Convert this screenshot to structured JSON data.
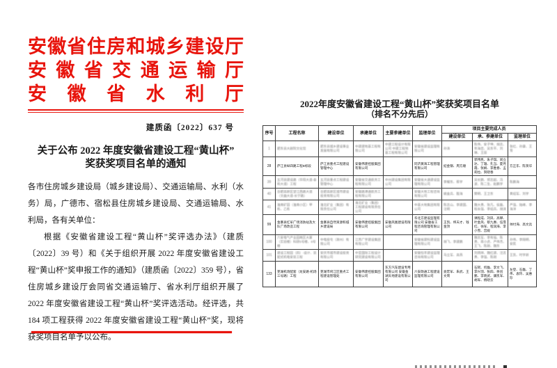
{
  "colors": {
    "red": "#e8140c",
    "text": "#1a1a1a"
  },
  "left_doc": {
    "agency_lines": [
      "安徽省住房和城乡建设厅",
      "安徽省交通运输厅",
      "安徽省水利厅"
    ],
    "doc_number": "建质函〔2022〕637 号",
    "title_line1": "关于公布 2022 年度安徽省建设工程“黄山杯”",
    "title_line2": "奖获奖项目名单的通知",
    "paragraphs": [
      "各市住房城乡建设局（城乡建设局）、交通运输局、水利（水务）局，广德市、宿松县住房城乡建设局、交通运输局、水利局，各有关单位：",
      "根据《安徽省建设工程“黄山杯”奖评选办法》（建质〔2022〕39 号）和《关于组织开展 2022 年度安徽省建设工程“黄山杯”奖申报工作的通知》（建质函〔2022〕359 号），省住房城乡建设厅会同省交通运输厅、省水利厅组织开展了 2022 年度安徽省建设工程“黄山杯”奖评选活动。经评选，共 184 项工程获得 2022 年度安徽省建设工程“黄山杯”奖，现将获奖项目名单予以公布。"
    ]
  },
  "right_doc": {
    "title": "2022年度安徽省建设工程“黄山杯”奖获奖项目名单",
    "subtitle": "（排名不分先后）",
    "table": {
      "headers": [
        "序号",
        "工程名称",
        "建设单位",
        "承建单位",
        "主要参建单位",
        "监理单位",
        "项目主要完成人员",
        "建设单位",
        "承、参建单位",
        "监理单位"
      ],
      "rows": [
        {
          "num": "1",
          "blur": true,
          "cells": [
            "肥东县大剧院文化馆",
            "肥东县城乡建设事业发展有限公司",
            "中建建地基工程有限公司",
            "中建工程设计有限公司 中建工程地基工程有限公司",
            "安徽省建设监理有限公司",
            "孙涛",
            "陈伟、安子坤、胡志、年海忠、吴东平、刘琳、王丽",
            "张红、孙康、王雪"
          ]
        },
        {
          "num": "28",
          "blur": false,
          "cells": [
            "庐江县纵四路工程B标段",
            "庐江县重点工程建设管理中心",
            "安徽伟建控股集团有限公司",
            "",
            "同济黄海工程管理有限公司",
            "纪金钢、周方顺",
            "郭伟民、朱子琪、闵立达、丁雄、孔当、夏月霞、张娟、李胜春、孟莉拉、贺晓春",
            "方正东、陈贺华"
          ]
        },
        {
          "num": "39",
          "blur": true,
          "cells": [
            "五河县建设路（华阳大道-泰和大道）工程",
            "五河县重点工程建设管理中心",
            "安徽省交通航务工程有限公司",
            "中州建设集团有限公司",
            "安徽省大通建设监理有限公司",
            "李耀东、蔡宇",
            "吴长鹏、郑志超、冯波、陈二生、赵鹏宇",
            "陈鹏海"
          ]
        },
        {
          "num": "40",
          "blur": true,
          "cells": [
            "合肥高新区望江西路大道（文曲大道-长宁路）",
            "合肥高新区城市建设投资有限公司",
            "安徽路港通航务工程有限公司",
            "",
            "安徽大地工程咨询有限公司",
            "姚金兵、殷海",
            "樊明、王卫东",
            "黄绍军、刘宇"
          ]
        },
        {
          "num": "41",
          "blur": true,
          "cells": [
            "淮南矿园（淮南小区）甲栋、乙栋",
            "淮北矿业（集团）有限责任公司",
            "淮北矿业（集团）工程建设有限责任公司",
            "",
            "中基大地集团有限公司",
            "陈志山、李建国、汪明",
            "魏大勇、张凡、侯磊、程永强、李绍兵、胡涛",
            "严强、陆峰、李海洋"
          ]
        },
        {
          "num": "99",
          "blur": false,
          "cells": [
            "金寨县红军广场消防站及大队广场改造工程",
            "金寨县自然资源和城乡建设局",
            "安徽伟建控股集团有限公司",
            "安徽凤凰建设有限公司",
            "华北方建设监理有限公司 安徽省工程咨询管理有限公司",
            "王凯、纬天才、钱金顶",
            "课程成、刘凤、高攀、叶金凤、蔡九惠、伍雪红、徐军、程润海、李小雪、宫殿",
            "帅付海、高文兵"
          ]
        },
        {
          "num": "100",
          "blur": true,
          "cells": [
            "六安电气产业园南区大厦（实验楼）科研5号楼、6号楼",
            "中电投屯（滁州）有限公司",
            "江苏广宇建设集团有限公司",
            "",
            "安徽省建科建设监理有限公司",
            "胡飞、李建鹏",
            "魏志军、李有福、陈勇、蒋小虎、严伟杰、王飞、陈刚、魏东",
            "孙伟、李翔明、安民"
          ]
        },
        {
          "num": "101",
          "blur": true,
          "cells": [
            "建设工程园（四）-设计、装配式机电安装工程",
            "安庆市城市建设投资有限公司",
            "中亚国际工程设计研究建设有限公司",
            "",
            "安徽恒丰建设监理咨询有限公司",
            "马立军、高燕",
            "刘炳祥、魏红建、汪志勇、李强、陈刚",
            "王凯、时宇新"
          ]
        },
        {
          "num": "133",
          "blur": false,
          "cells": [
            "芜湖机场配套（龙安路-机场三号路）工程",
            "芜湖市鸠江区重点工程建设管理处",
            "安徽伟建控股集团有限公司",
            "东方汽车建设专用有限公司 安徽金湖天地建设有限公司",
            "六安政通工程建设监理有限公司",
            "竟宏军、朱武、王文周",
            "石轲、何磊、李文飞、李兴羽、张四、余创鹏、李晓武、康凯军、胡军、杨晓云",
            "左登、石磊、丁伟、袁玲、吴惠珍"
          ]
        }
      ]
    }
  }
}
